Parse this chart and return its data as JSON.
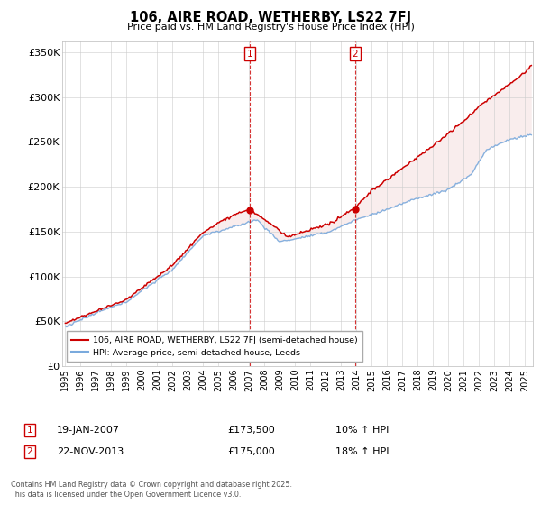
{
  "title": "106, AIRE ROAD, WETHERBY, LS22 7FJ",
  "subtitle": "Price paid vs. HM Land Registry's House Price Index (HPI)",
  "ylabel_ticks": [
    "£0",
    "£50K",
    "£100K",
    "£150K",
    "£200K",
    "£250K",
    "£300K",
    "£350K"
  ],
  "ytick_values": [
    0,
    50000,
    100000,
    150000,
    200000,
    250000,
    300000,
    350000
  ],
  "ylim": [
    0,
    362000
  ],
  "xlim_start": 1994.8,
  "xlim_end": 2025.5,
  "sale1_x": 2007.05,
  "sale1_y": 173500,
  "sale1_label": "1",
  "sale1_date": "19-JAN-2007",
  "sale1_price": "£173,500",
  "sale1_hpi": "10% ↑ HPI",
  "sale2_x": 2013.9,
  "sale2_y": 175000,
  "sale2_label": "2",
  "sale2_date": "22-NOV-2013",
  "sale2_price": "£175,000",
  "sale2_hpi": "18% ↑ HPI",
  "line_color_red": "#cc0000",
  "line_color_blue": "#7aaadd",
  "fill_color_blue": "#d8e8f5",
  "background_color": "#ffffff",
  "grid_color": "#cccccc",
  "legend_label_red": "106, AIRE ROAD, WETHERBY, LS22 7FJ (semi-detached house)",
  "legend_label_blue": "HPI: Average price, semi-detached house, Leeds",
  "footer": "Contains HM Land Registry data © Crown copyright and database right 2025.\nThis data is licensed under the Open Government Licence v3.0."
}
